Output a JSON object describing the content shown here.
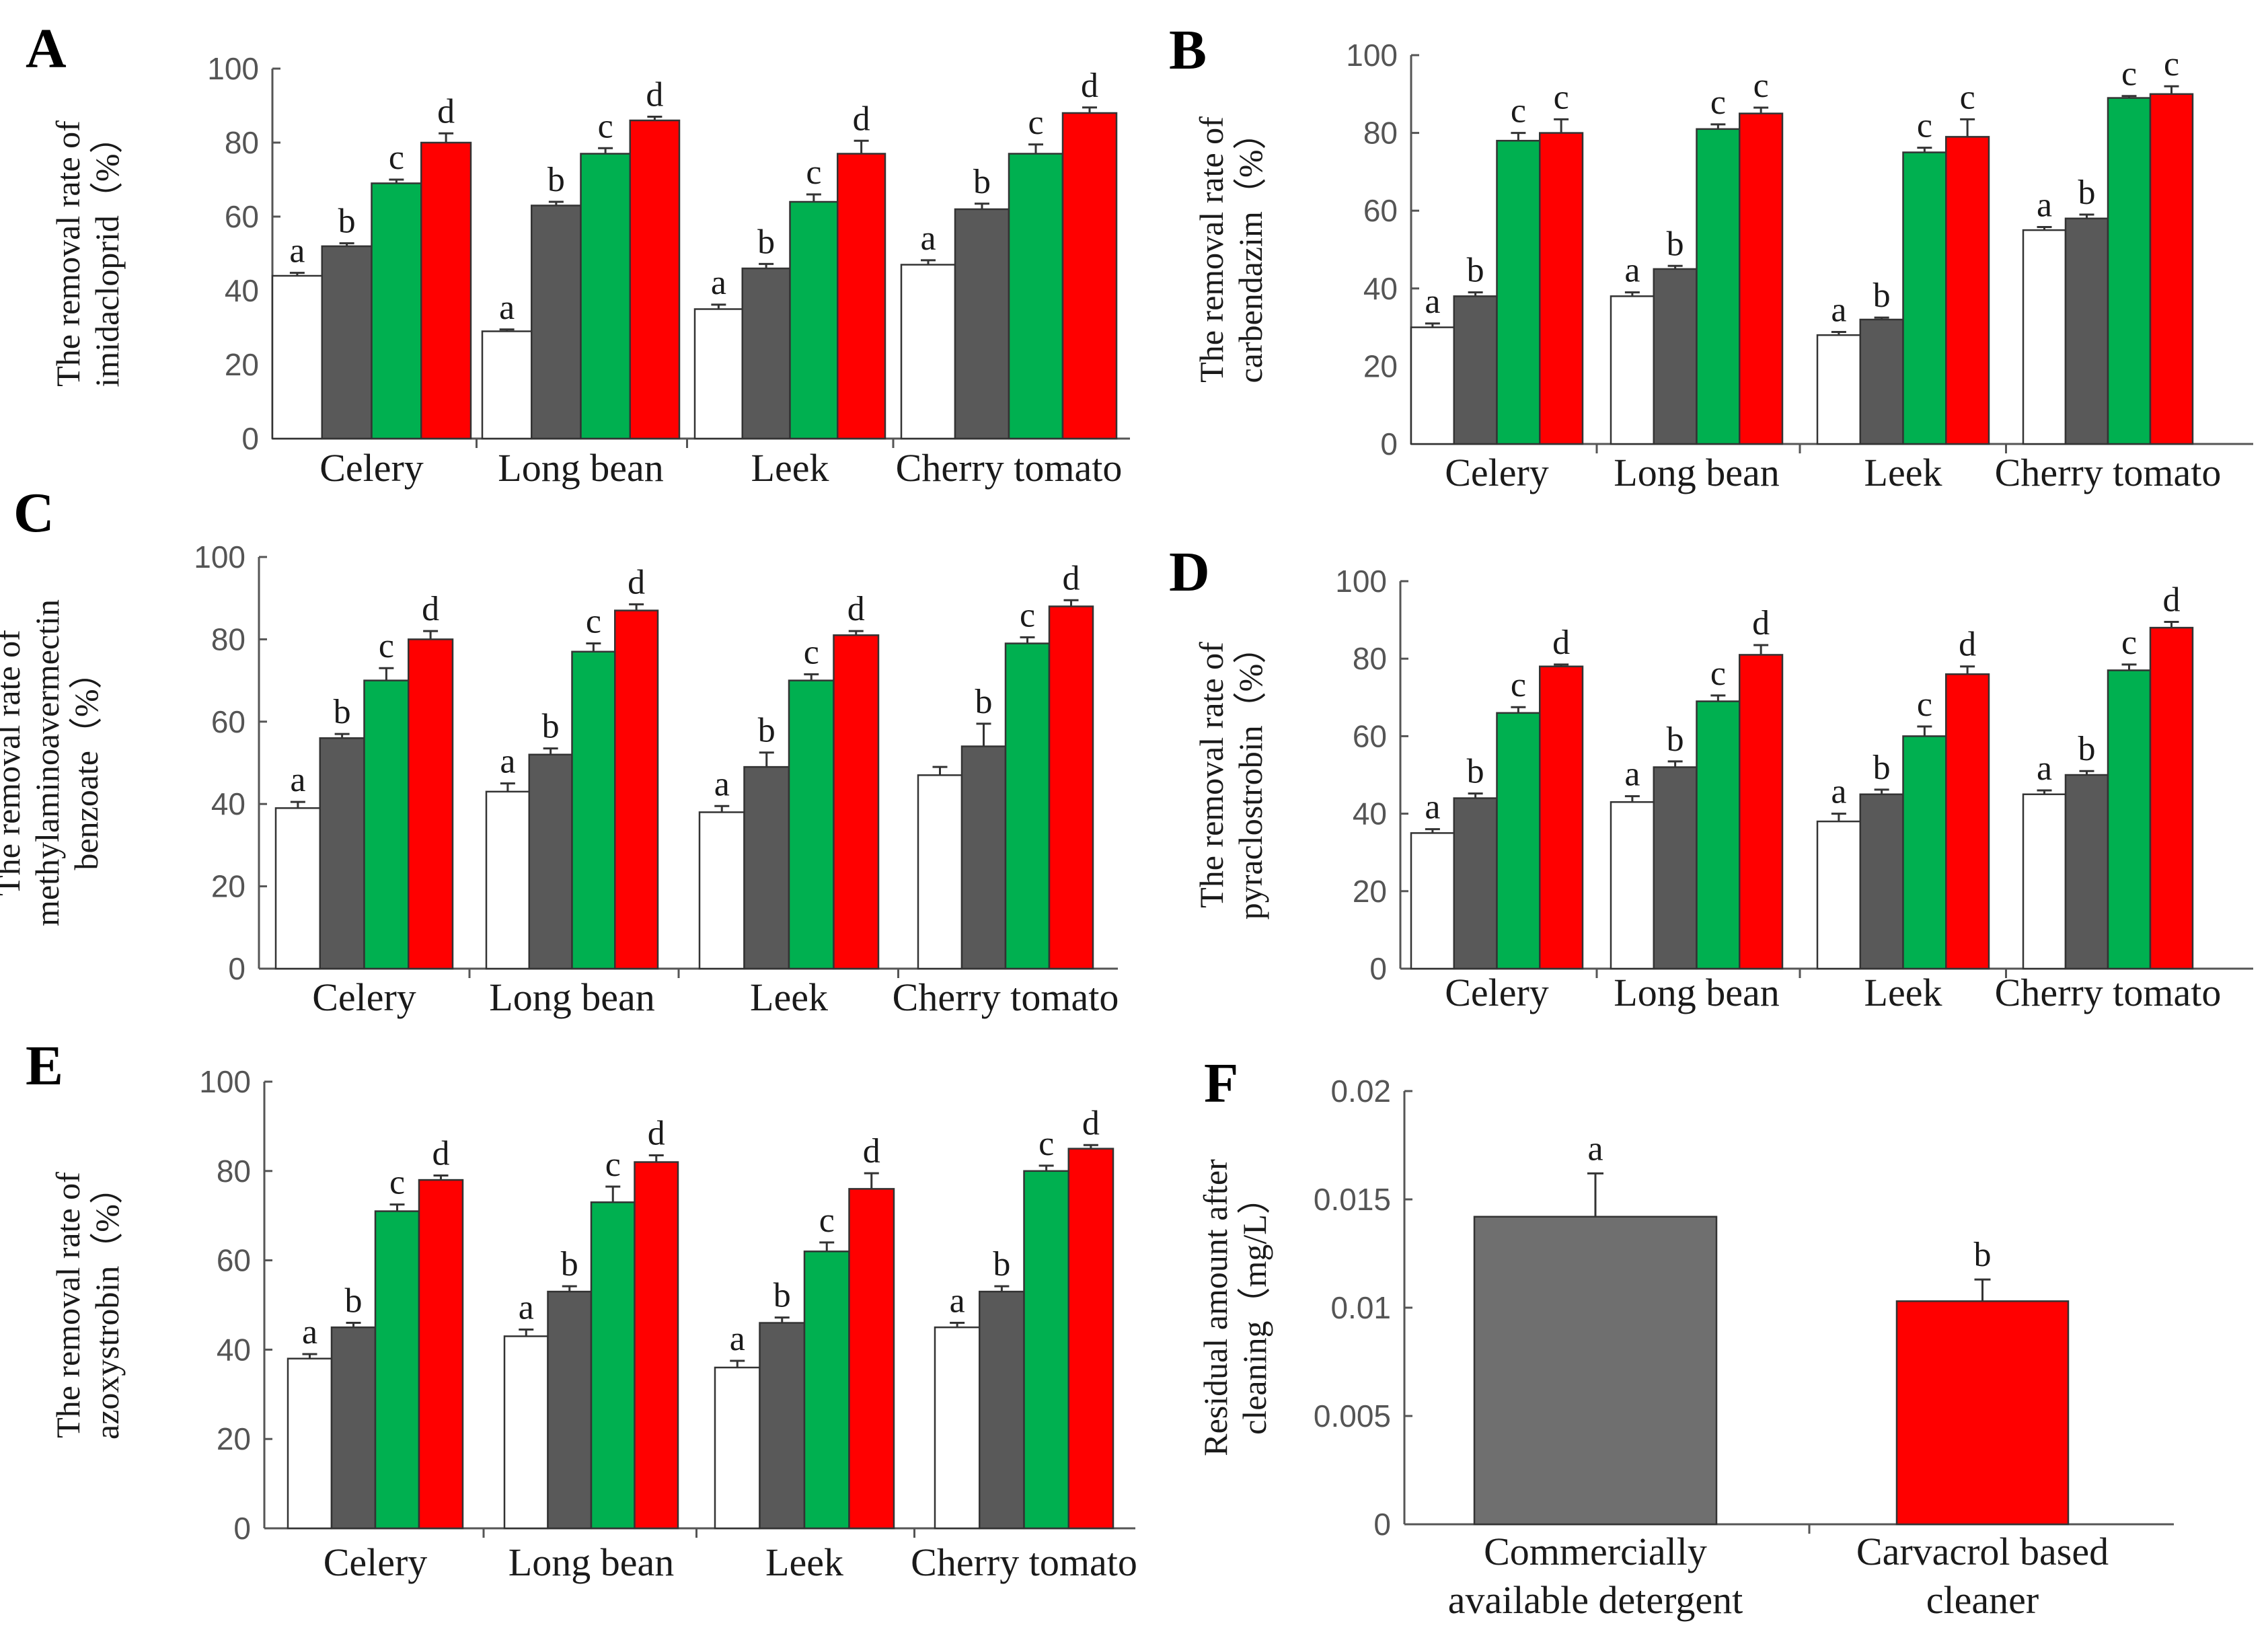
{
  "colors": {
    "series": [
      "#ffffff",
      "#595959",
      "#00b050",
      "#ff0000"
    ],
    "f_bars": [
      "#6f6f6f",
      "#ff0000"
    ]
  },
  "chart_data": [
    {
      "panel": "A",
      "type": "bar",
      "ylabel_lines": [
        "The removal rate of",
        "imidacloprid（%）"
      ],
      "ylim": [
        0,
        100
      ],
      "yticks": [
        "0",
        "20",
        "40",
        "60",
        "80",
        "100"
      ],
      "categories": [
        "Celery",
        "Long bean",
        "Leek",
        "Cherry tomato"
      ],
      "values": [
        [
          44,
          52,
          69,
          80
        ],
        [
          29,
          63,
          77,
          86
        ],
        [
          35,
          46,
          64,
          77
        ],
        [
          47,
          62,
          77,
          88
        ]
      ],
      "errors": [
        [
          0.8,
          0.8,
          1,
          2.5
        ],
        [
          0.5,
          1,
          1.5,
          1
        ],
        [
          1.2,
          1.2,
          2,
          3.5
        ],
        [
          1.2,
          1.5,
          2.5,
          1.5
        ]
      ],
      "letters": [
        [
          "a",
          "b",
          "c",
          "d"
        ],
        [
          "a",
          "b",
          "c",
          "d"
        ],
        [
          "a",
          "b",
          "c",
          "d"
        ],
        [
          "a",
          "b",
          "c",
          "d"
        ]
      ]
    },
    {
      "panel": "B",
      "type": "bar",
      "ylabel_lines": [
        "The removal rate of",
        "carbendazim（%）"
      ],
      "ylim": [
        0,
        100
      ],
      "yticks": [
        "0",
        "20",
        "40",
        "60",
        "80",
        "100"
      ],
      "categories": [
        "Celery",
        "Long bean",
        "Leek",
        "Cherry tomato"
      ],
      "values": [
        [
          30,
          38,
          78,
          80
        ],
        [
          38,
          45,
          81,
          85
        ],
        [
          28,
          32,
          75,
          79
        ],
        [
          55,
          58,
          89,
          90
        ]
      ],
      "errors": [
        [
          1,
          1,
          2,
          3.5
        ],
        [
          1,
          0.8,
          1.2,
          1.5
        ],
        [
          0.8,
          0.5,
          1.2,
          4.5
        ],
        [
          0.8,
          1,
          0.5,
          2
        ]
      ],
      "letters": [
        [
          "a",
          "b",
          "c",
          "c"
        ],
        [
          "a",
          "b",
          "c",
          "c"
        ],
        [
          "a",
          "b",
          "c",
          "c"
        ],
        [
          "a",
          "b",
          "c",
          "c"
        ]
      ]
    },
    {
      "panel": "C",
      "type": "bar",
      "ylabel_lines": [
        "The removal rate of",
        "methylaminoavermectin",
        "benzoate（%）"
      ],
      "ylim": [
        0,
        100
      ],
      "yticks": [
        "0",
        "20",
        "40",
        "60",
        "80",
        "100"
      ],
      "categories": [
        "Celery",
        "Long bean",
        "Leek",
        "Cherry tomato"
      ],
      "values": [
        [
          39,
          56,
          70,
          80
        ],
        [
          43,
          52,
          77,
          87
        ],
        [
          38,
          49,
          70,
          81
        ],
        [
          47,
          54,
          79,
          88
        ]
      ],
      "errors": [
        [
          1.5,
          1,
          3,
          2
        ],
        [
          2,
          1.5,
          2,
          1.5
        ],
        [
          1.5,
          3.5,
          1.5,
          1
        ],
        [
          2,
          5.5,
          1.5,
          1.5
        ]
      ],
      "letters": [
        [
          "a",
          "b",
          "c",
          "d"
        ],
        [
          "a",
          "b",
          "c",
          "d"
        ],
        [
          "a",
          "b",
          "c",
          "d"
        ],
        [
          "",
          "b",
          "c",
          "d"
        ]
      ]
    },
    {
      "panel": "D",
      "type": "bar",
      "ylabel_lines": [
        "The removal rate of",
        "pyraclostrobin（%）"
      ],
      "ylim": [
        0,
        100
      ],
      "yticks": [
        "0",
        "20",
        "40",
        "60",
        "80",
        "100"
      ],
      "categories": [
        "Celery",
        "Long bean",
        "Leek",
        "Cherry tomato"
      ],
      "values": [
        [
          35,
          44,
          66,
          78
        ],
        [
          43,
          52,
          69,
          81
        ],
        [
          38,
          45,
          60,
          76
        ],
        [
          45,
          50,
          77,
          88
        ]
      ],
      "errors": [
        [
          1,
          1.2,
          1.5,
          0.5
        ],
        [
          1.5,
          1.5,
          1.5,
          2.5
        ],
        [
          2,
          1.2,
          2.5,
          2
        ],
        [
          1,
          1,
          1.5,
          1.5
        ]
      ],
      "letters": [
        [
          "a",
          "b",
          "c",
          "d"
        ],
        [
          "a",
          "b",
          "c",
          "d"
        ],
        [
          "a",
          "b",
          "c",
          "d"
        ],
        [
          "a",
          "b",
          "c",
          "d"
        ]
      ]
    },
    {
      "panel": "E",
      "type": "bar",
      "ylabel_lines": [
        "The removal rate of",
        "azoxystrobin（%）"
      ],
      "ylim": [
        0,
        100
      ],
      "yticks": [
        "0",
        "20",
        "40",
        "60",
        "80",
        "100"
      ],
      "categories": [
        "Celery",
        "Long bean",
        "Leek",
        "Cherry tomato"
      ],
      "values": [
        [
          38,
          45,
          71,
          78
        ],
        [
          43,
          53,
          73,
          82
        ],
        [
          36,
          46,
          62,
          76
        ],
        [
          45,
          53,
          80,
          85
        ]
      ],
      "errors": [
        [
          1,
          1,
          1.5,
          1
        ],
        [
          1.5,
          1.2,
          3.5,
          1.5
        ],
        [
          1.5,
          1.2,
          2,
          3.5
        ],
        [
          1,
          1.2,
          1.2,
          0.8
        ]
      ],
      "letters": [
        [
          "a",
          "b",
          "c",
          "d"
        ],
        [
          "a",
          "b",
          "c",
          "d"
        ],
        [
          "a",
          "b",
          "c",
          "d"
        ],
        [
          "a",
          "b",
          "c",
          "d"
        ]
      ]
    },
    {
      "panel": "F",
      "type": "bar",
      "ylabel_lines": [
        "Residual amount after",
        "cleaning（mg/L）"
      ],
      "ylim": [
        0,
        0.02
      ],
      "yticks": [
        "0",
        "0.005",
        "0.01",
        "0.015",
        "0.02"
      ],
      "categories": [
        [
          "Commercially",
          "available detergent"
        ],
        [
          "Carvacrol based",
          "cleaner"
        ]
      ],
      "values": [
        0.0142,
        0.0103
      ],
      "errors": [
        0.002,
        0.001
      ],
      "letters": [
        "a",
        "b"
      ]
    }
  ]
}
